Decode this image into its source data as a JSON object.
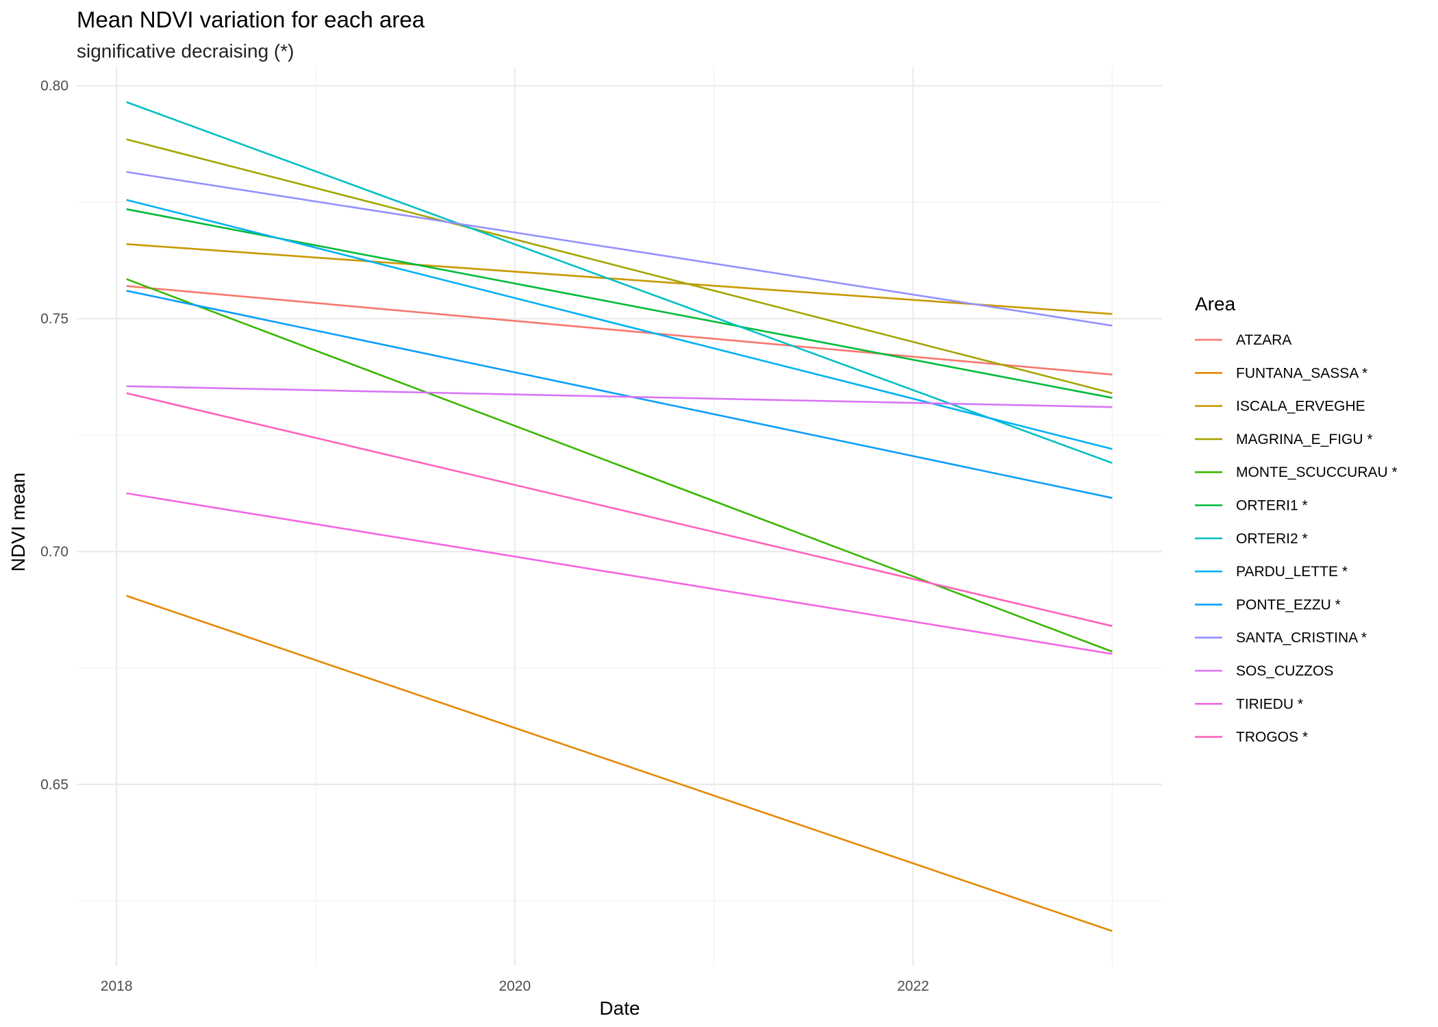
{
  "chart_data": {
    "type": "line",
    "title": "Mean NDVI variation for each area",
    "subtitle": "significative decraising (*)",
    "xlabel": "Date",
    "ylabel": "NDVI mean",
    "xlim": [
      2017.8,
      2023.25
    ],
    "ylim": [
      0.611,
      0.804
    ],
    "x_ticks": [
      2018,
      2020,
      2022
    ],
    "x_tick_labels": [
      "2018",
      "2020",
      "2022"
    ],
    "y_ticks": [
      0.65,
      0.7,
      0.75,
      0.8
    ],
    "y_tick_labels": [
      "0.65",
      "0.70",
      "0.75",
      "0.80"
    ],
    "grid": true,
    "legend_title": "Area",
    "legend_position": "right",
    "series": [
      {
        "name": "ATZARA",
        "color": "#F8766D",
        "x": [
          2018.05,
          2023.0
        ],
        "y": [
          0.757,
          0.738
        ]
      },
      {
        "name": "FUNTANA_SASSA *",
        "color": "#E58700",
        "x": [
          2018.05,
          2023.0
        ],
        "y": [
          0.6905,
          0.6185
        ]
      },
      {
        "name": "ISCALA_ERVEGHE",
        "color": "#C99800",
        "x": [
          2018.05,
          2023.0
        ],
        "y": [
          0.766,
          0.751
        ]
      },
      {
        "name": "MAGRINA_E_FIGU *",
        "color": "#A3A500",
        "x": [
          2018.05,
          2023.0
        ],
        "y": [
          0.7885,
          0.734
        ]
      },
      {
        "name": "MONTE_SCUCCURAU *",
        "color": "#39B600",
        "x": [
          2018.05,
          2023.0
        ],
        "y": [
          0.7585,
          0.6785
        ]
      },
      {
        "name": "ORTERI1 *",
        "color": "#00BA38",
        "x": [
          2018.05,
          2023.0
        ],
        "y": [
          0.7735,
          0.733
        ]
      },
      {
        "name": "ORTERI2 *",
        "color": "#00BFC4",
        "x": [
          2018.05,
          2023.0
        ],
        "y": [
          0.7965,
          0.719
        ]
      },
      {
        "name": "PARDU_LETTE *",
        "color": "#00B0F6",
        "x": [
          2018.05,
          2023.0
        ],
        "y": [
          0.7755,
          0.722
        ]
      },
      {
        "name": "PONTE_EZZU *",
        "color": "#0D9EF9",
        "x": [
          2018.05,
          2023.0
        ],
        "y": [
          0.756,
          0.7115
        ]
      },
      {
        "name": "SANTA_CRISTINA *",
        "color": "#9590FF",
        "x": [
          2018.05,
          2023.0
        ],
        "y": [
          0.7815,
          0.7485
        ]
      },
      {
        "name": "SOS_CUZZOS",
        "color": "#D774F6",
        "x": [
          2018.05,
          2023.0
        ],
        "y": [
          0.7355,
          0.731
        ]
      },
      {
        "name": "TIRIEDU *",
        "color": "#F564E3",
        "x": [
          2018.05,
          2023.0
        ],
        "y": [
          0.7125,
          0.678
        ]
      },
      {
        "name": "TROGOS *",
        "color": "#FF62BC",
        "x": [
          2018.05,
          2023.0
        ],
        "y": [
          0.734,
          0.684
        ]
      }
    ]
  }
}
